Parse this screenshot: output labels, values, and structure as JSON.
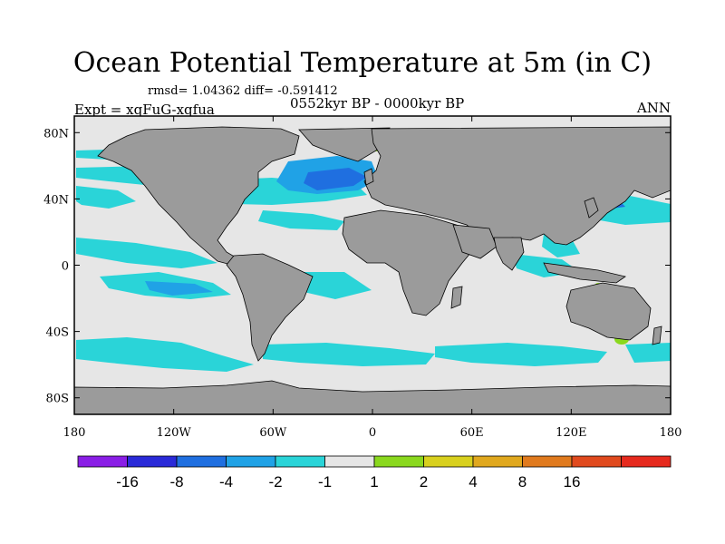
{
  "title": "Ocean Potential Temperature at 5m (in C)",
  "stats": "rmsd= 1.04362 diff= -0.591412",
  "experiment": "Expt = xqFuG-xqfua",
  "period": "0552kyr BP - 0000kyr BP",
  "season": "ANN",
  "x_ticks": [
    {
      "lon": -180,
      "label": "180"
    },
    {
      "lon": -120,
      "label": "120W"
    },
    {
      "lon": -60,
      "label": "60W"
    },
    {
      "lon": 0,
      "label": "0"
    },
    {
      "lon": 60,
      "label": "60E"
    },
    {
      "lon": 120,
      "label": "120E"
    },
    {
      "lon": 180,
      "label": "180"
    }
  ],
  "y_ticks": [
    {
      "lat": 80,
      "label": "80N"
    },
    {
      "lat": 40,
      "label": "40N"
    },
    {
      "lat": 0,
      "label": "0"
    },
    {
      "lat": -40,
      "label": "40S"
    },
    {
      "lat": -80,
      "label": "80S"
    }
  ],
  "colorbar": {
    "colors": [
      "#8a1ee6",
      "#2a2ad8",
      "#1f6fe0",
      "#20a2e6",
      "#2ad4d8",
      "#e6e6e6",
      "#8ad81e",
      "#d8d01e",
      "#e0a81e",
      "#e07a1e",
      "#e04a1e",
      "#e62a1e"
    ],
    "labels": [
      "-16",
      "-8",
      "-4",
      "-2",
      "-1",
      "1",
      "2",
      "4",
      "8",
      "16"
    ]
  },
  "colors": {
    "land": "#9b9b9b",
    "ocean_neutral": "#e6e6e6",
    "cool_1": "#2ad4d8",
    "cool_2": "#20a2e6",
    "cool_3": "#1f6fe0",
    "warm_1": "#8ad81e"
  }
}
